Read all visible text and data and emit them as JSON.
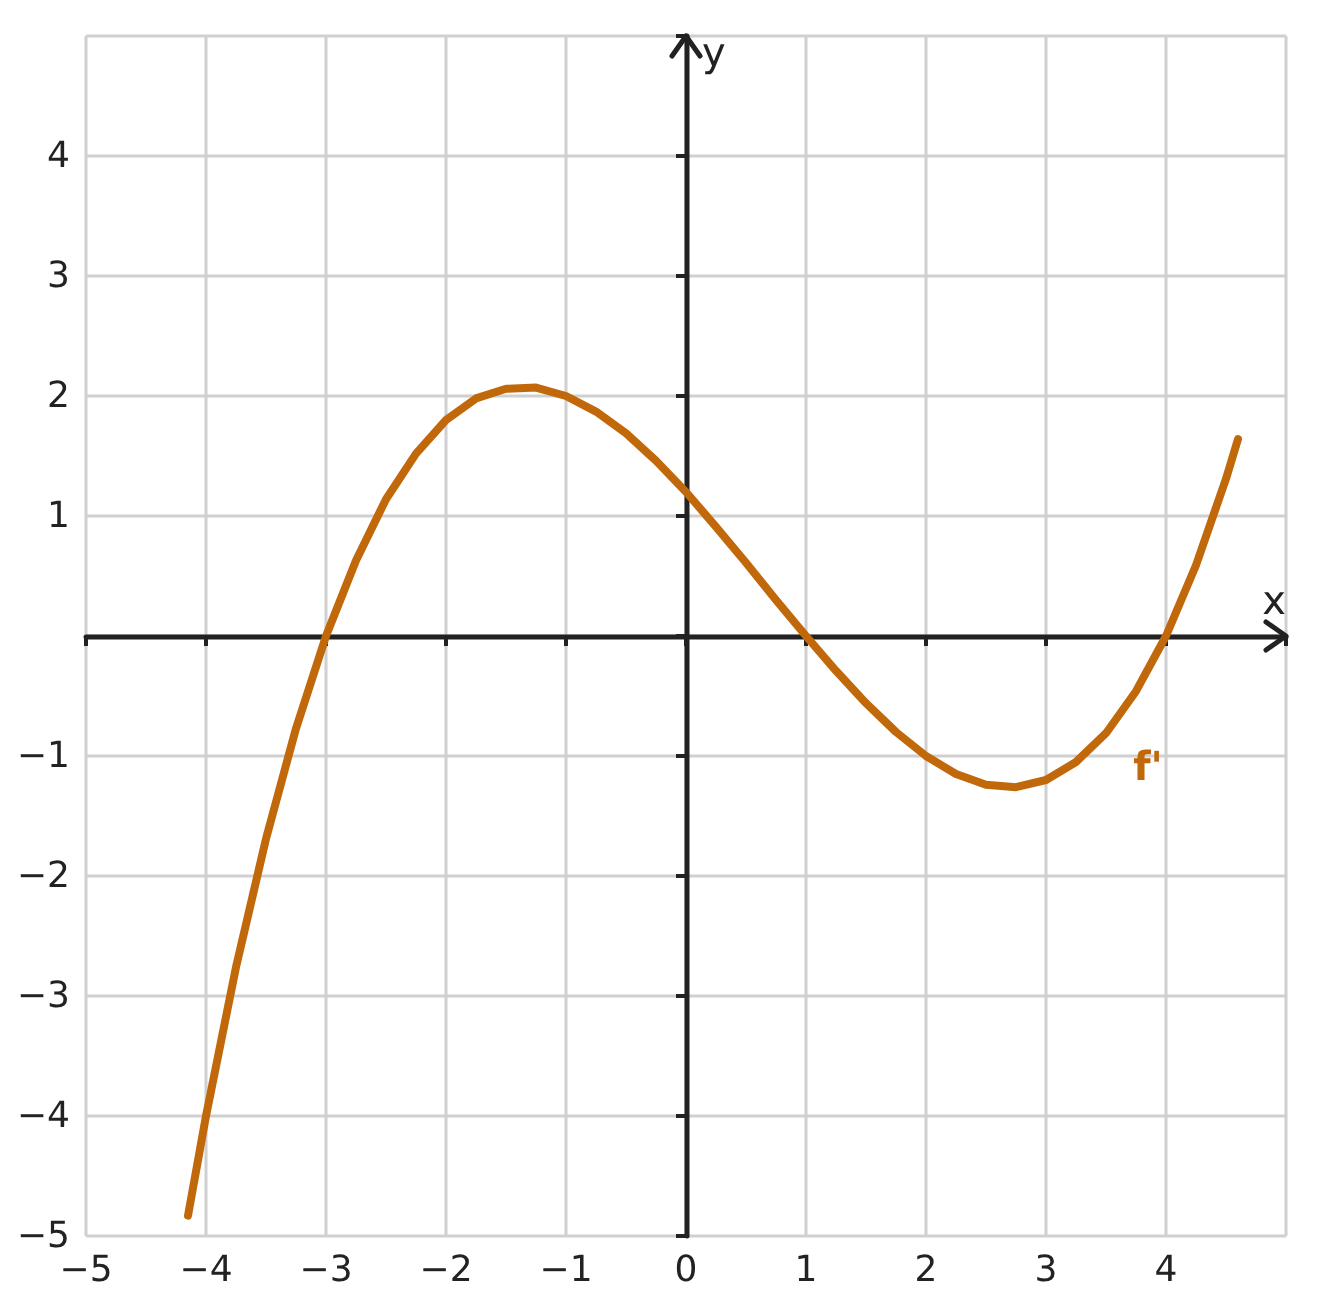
{
  "chart_data": {
    "type": "line",
    "xlabel": "x",
    "ylabel": "y",
    "x": [
      -4.15,
      -4,
      -3.75,
      -3.5,
      -3.25,
      -3,
      -2.75,
      -2.5,
      -2.25,
      -2,
      -1.75,
      -1.5,
      -1.25,
      -1,
      -0.75,
      -0.5,
      -0.25,
      0,
      0.25,
      0.5,
      0.75,
      1,
      1.25,
      1.5,
      1.75,
      2,
      2.25,
      2.5,
      2.75,
      3,
      3.25,
      3.5,
      3.75,
      4,
      4.25,
      4.5,
      4.6
    ],
    "series": [
      {
        "color": "#c0680a",
        "values": [
          -4.83,
          -4,
          -2.76,
          -1.69,
          -0.77,
          0,
          0.63,
          1.14,
          1.52,
          1.8,
          1.98,
          2.06,
          2.07,
          2,
          1.87,
          1.69,
          1.46,
          1.2,
          0.91,
          0.61,
          0.3,
          0,
          -0.29,
          -0.56,
          -0.8,
          -1,
          -1.15,
          -1.24,
          -1.26,
          -1.2,
          -1.05,
          -0.81,
          -0.46,
          0,
          0.59,
          1.31,
          1.64
        ]
      }
    ],
    "annotations": [
      "f'"
    ],
    "xlim": [
      -5,
      5
    ],
    "ylim": [
      -5,
      5
    ],
    "xticks": [
      -5,
      -4,
      -3,
      -2,
      -1,
      0,
      1,
      2,
      3,
      4,
      {
        "value": 5,
        "label": null
      }
    ],
    "yticks": [
      -5,
      -4,
      -3,
      -2,
      -1,
      {
        "value": 0,
        "label": null
      },
      1,
      2,
      3,
      4,
      {
        "value": 5,
        "label": null
      }
    ],
    "grid": true,
    "marker": "none",
    "line_style": "solid"
  }
}
